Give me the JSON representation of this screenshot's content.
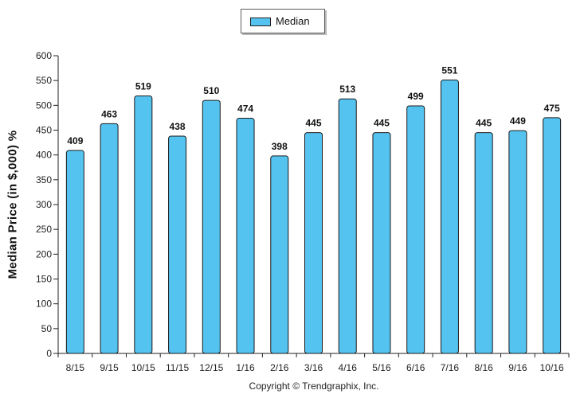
{
  "legend": {
    "label": "Median",
    "color": "#55c3f0"
  },
  "copyright": "Copyright © Trendgraphix, Inc.",
  "chart_data": {
    "type": "bar",
    "ylabel": "Median Price (in $,000) %",
    "xlabel": "",
    "ylim": [
      0,
      600
    ],
    "ytick_step": 50,
    "categories": [
      "8/15",
      "9/15",
      "10/15",
      "11/15",
      "12/15",
      "1/16",
      "2/16",
      "3/16",
      "4/16",
      "5/16",
      "6/16",
      "7/16",
      "8/16",
      "9/16",
      "10/16"
    ],
    "series": [
      {
        "name": "Median",
        "values": [
          409,
          463,
          519,
          438,
          510,
          474,
          398,
          445,
          513,
          445,
          499,
          551,
          445,
          449,
          475
        ]
      }
    ],
    "data_labels": true,
    "grid": false,
    "legend_position": "top-center"
  }
}
